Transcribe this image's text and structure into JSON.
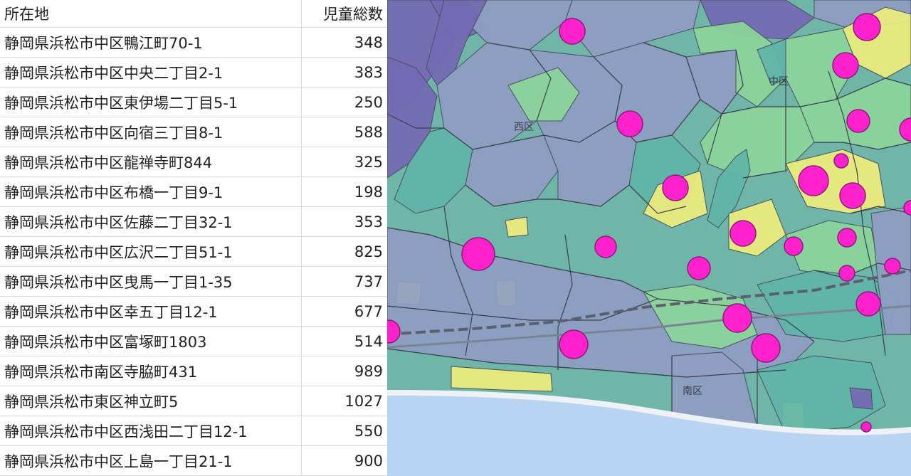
{
  "table": {
    "headers": {
      "address": "所在地",
      "count": "児童総数"
    },
    "rows": [
      {
        "address": "静岡県浜松市中区鴨江町70-1",
        "count": "348"
      },
      {
        "address": "静岡県浜松市中区中央二丁目2-1",
        "count": "383"
      },
      {
        "address": "静岡県浜松市中区東伊場二丁目5-1",
        "count": "250"
      },
      {
        "address": "静岡県浜松市中区向宿三丁目8-1",
        "count": "588"
      },
      {
        "address": "静岡県浜松市中区龍禅寺町844",
        "count": "325"
      },
      {
        "address": "静岡県浜松市中区布橋一丁目9-1",
        "count": "198"
      },
      {
        "address": "静岡県浜松市中区佐藤二丁目32-1",
        "count": "353"
      },
      {
        "address": "静岡県浜松市中区広沢二丁目51-1",
        "count": "825"
      },
      {
        "address": "静岡県浜松市中区曳馬一丁目1-35",
        "count": "737"
      },
      {
        "address": "静岡県浜松市中区幸五丁目12-1",
        "count": "677"
      },
      {
        "address": "静岡県浜松市中区富塚町1803",
        "count": "514"
      },
      {
        "address": "静岡県浜松市南区寺脇町431",
        "count": "989"
      },
      {
        "address": "静岡県浜松市東区神立町5",
        "count": "1027"
      },
      {
        "address": "静岡県浜松市中区西浅田二丁目12-1",
        "count": "550"
      },
      {
        "address": "静岡県浜松市中区上島一丁目21-1",
        "count": "900"
      }
    ]
  },
  "map": {
    "labels": {
      "west_ward": "西区",
      "naka_ward": "中区",
      "minami_ward": "南区"
    },
    "colors": {
      "marker": "#ff22cc",
      "sea": "#b9d3f2",
      "beach": "#eef1f5",
      "region_purple": "#7469b3",
      "region_slate": "#8f9dc2",
      "region_teal": "#5fb4a8",
      "region_green": "#8bd59a",
      "region_yellow": "#eded7c"
    }
  }
}
